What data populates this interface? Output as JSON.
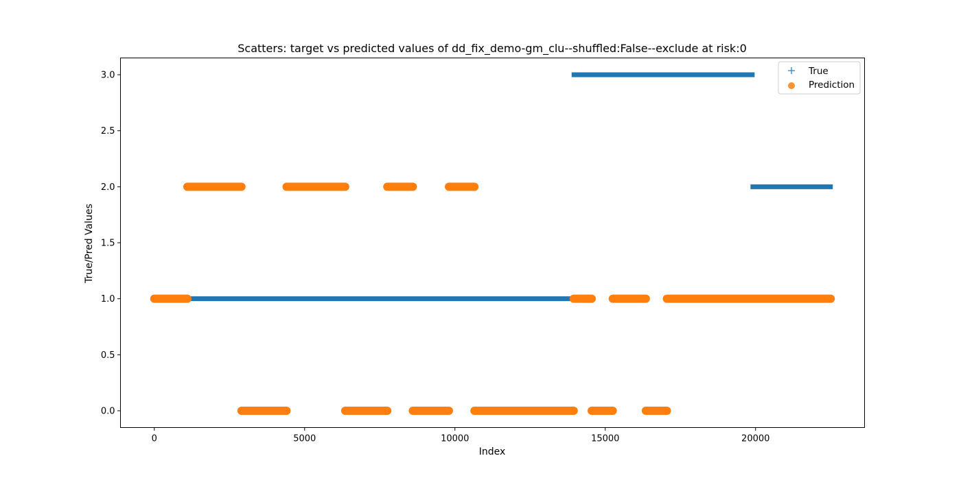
{
  "chart_data": {
    "type": "scatter",
    "title": "Scatters: target vs predicted values of dd_fix_demo-gm_clu--shuffled:False--exclude at risk:0",
    "xlabel": "Index",
    "ylabel": "True/Pred Values",
    "xlim": [
      -1125,
      23625
    ],
    "ylim": [
      -0.15,
      3.15
    ],
    "xticks": [
      0,
      5000,
      10000,
      15000,
      20000
    ],
    "xtick_labels": [
      "0",
      "5000",
      "10000",
      "15000",
      "20000"
    ],
    "yticks": [
      0.0,
      0.5,
      1.0,
      1.5,
      2.0,
      2.5,
      3.0
    ],
    "ytick_labels": [
      "0.0",
      "0.5",
      "1.0",
      "1.5",
      "2.0",
      "2.5",
      "3.0"
    ],
    "grid": false,
    "legend_position": "top-right",
    "series": [
      {
        "name": "True",
        "marker": "plus",
        "color": "#1f77b4",
        "segments": [
          {
            "x_start": 0,
            "x_end": 13950,
            "y": 1.0
          },
          {
            "x_start": 13950,
            "x_end": 19900,
            "y": 3.0
          },
          {
            "x_start": 19900,
            "x_end": 22500,
            "y": 2.0
          }
        ]
      },
      {
        "name": "Prediction",
        "marker": "circle",
        "color": "#ff7f0e",
        "segments": [
          {
            "x_start": 0,
            "x_end": 1100,
            "y": 1.0
          },
          {
            "x_start": 1100,
            "x_end": 2900,
            "y": 2.0
          },
          {
            "x_start": 2900,
            "x_end": 4400,
            "y": 0.0
          },
          {
            "x_start": 4400,
            "x_end": 6350,
            "y": 2.0
          },
          {
            "x_start": 6350,
            "x_end": 7750,
            "y": 0.0
          },
          {
            "x_start": 7750,
            "x_end": 8600,
            "y": 2.0
          },
          {
            "x_start": 8600,
            "x_end": 9800,
            "y": 0.0
          },
          {
            "x_start": 9800,
            "x_end": 10650,
            "y": 2.0
          },
          {
            "x_start": 10650,
            "x_end": 13950,
            "y": 0.0
          },
          {
            "x_start": 13950,
            "x_end": 14550,
            "y": 1.0
          },
          {
            "x_start": 14550,
            "x_end": 15250,
            "y": 0.0
          },
          {
            "x_start": 15250,
            "x_end": 16350,
            "y": 1.0
          },
          {
            "x_start": 16350,
            "x_end": 17050,
            "y": 0.0
          },
          {
            "x_start": 17050,
            "x_end": 22500,
            "y": 1.0
          }
        ]
      }
    ]
  }
}
